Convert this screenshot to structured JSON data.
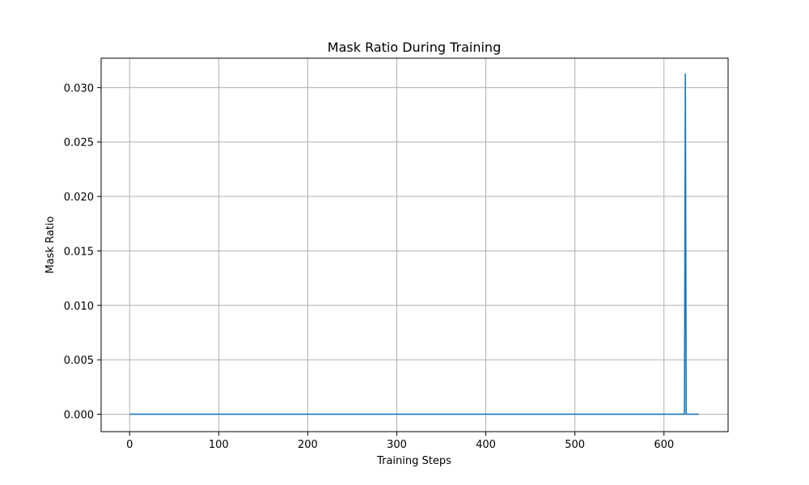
{
  "chart_data": {
    "type": "line",
    "title": "Mask Ratio During Training",
    "xlabel": "Training Steps",
    "ylabel": "Mask Ratio",
    "xlim": [
      -32,
      672
    ],
    "ylim": [
      -0.0016,
      0.0327
    ],
    "xticks": [
      0,
      100,
      200,
      300,
      400,
      500,
      600
    ],
    "xtick_labels": [
      "0",
      "100",
      "200",
      "300",
      "400",
      "500",
      "600"
    ],
    "yticks": [
      0.0,
      0.005,
      0.01,
      0.015,
      0.02,
      0.025,
      0.03
    ],
    "ytick_labels": [
      "0.000",
      "0.005",
      "0.010",
      "0.015",
      "0.020",
      "0.025",
      "0.030"
    ],
    "grid": true,
    "line_color": "#1f77b4",
    "grid_color": "#b0b0b0",
    "series": [
      {
        "x": [
          0,
          623,
          624,
          625,
          639
        ],
        "y": [
          0,
          0,
          0.03125,
          0,
          0
        ]
      }
    ]
  }
}
